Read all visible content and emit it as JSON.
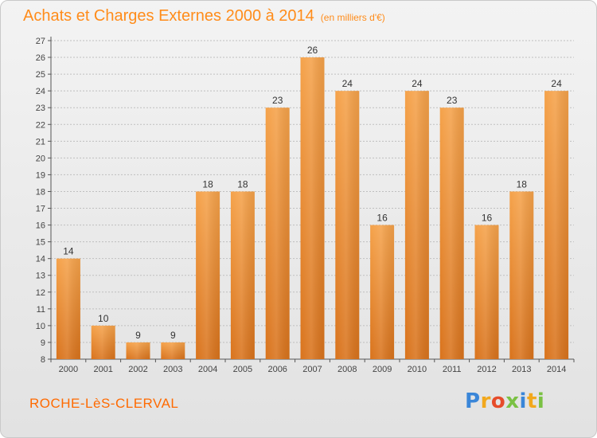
{
  "header": {
    "title": "Achats et Charges Externes 2000 à 2014",
    "unit": "(en milliers d'€)"
  },
  "footer": {
    "commune": "ROCHE-LèS-CLERVAL",
    "logo": "Proxiti"
  },
  "colors": {
    "bar_top": "#f5a24a",
    "bar_bottom": "#d9731c",
    "title": "#ff8c1a",
    "grid": "#bfbfbf"
  },
  "chart_data": {
    "type": "bar",
    "title": "Achats et Charges Externes 2000 à 2014",
    "subtitle": "(en milliers d'€)",
    "categories": [
      "2000",
      "2001",
      "2002",
      "2003",
      "2004",
      "2005",
      "2006",
      "2007",
      "2008",
      "2009",
      "2010",
      "2011",
      "2012",
      "2013",
      "2014"
    ],
    "values": [
      14,
      10,
      9,
      9,
      18,
      18,
      23,
      26,
      24,
      16,
      24,
      23,
      16,
      18,
      24
    ],
    "xlabel": "",
    "ylabel": "",
    "ylim": [
      8,
      27
    ],
    "yticks": [
      8,
      9,
      10,
      11,
      12,
      13,
      14,
      15,
      16,
      17,
      18,
      19,
      20,
      21,
      22,
      23,
      24,
      25,
      26,
      27
    ],
    "grid": true,
    "legend": "none"
  }
}
